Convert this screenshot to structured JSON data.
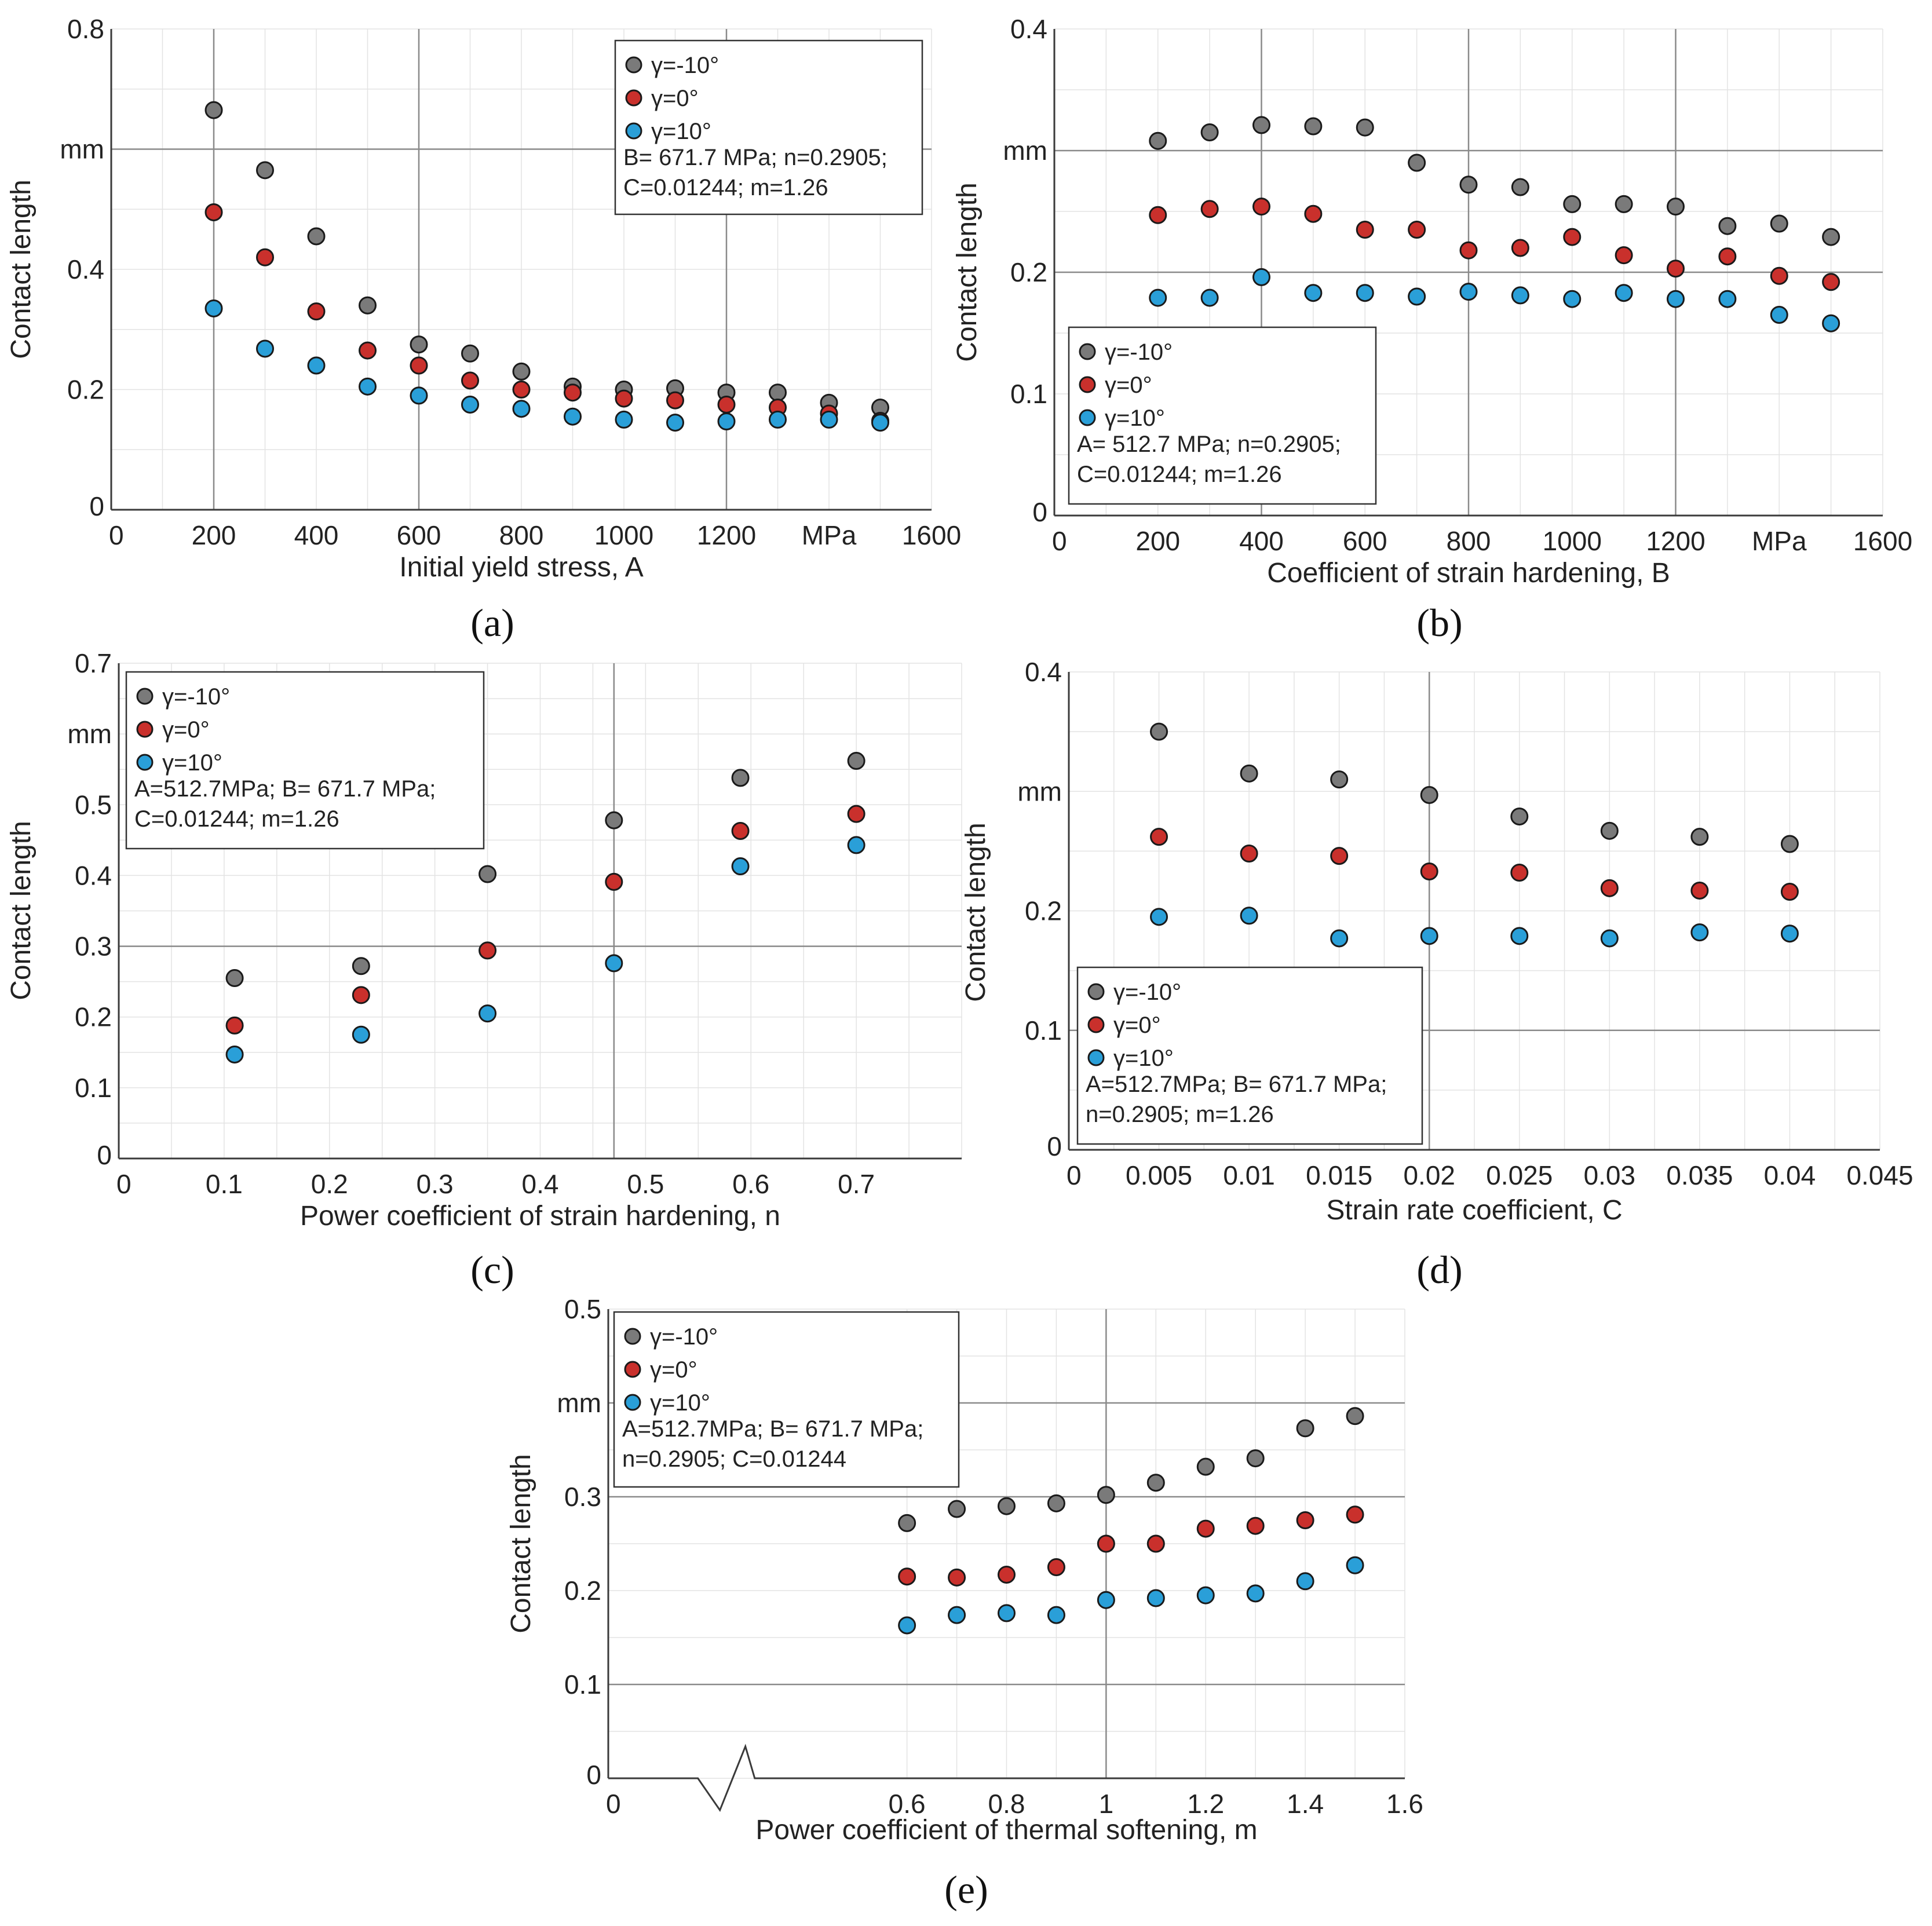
{
  "colors": {
    "gamma_minus10": "#7a7a7a",
    "gamma_0": "#c9302c",
    "gamma_10": "#2a9fd8"
  },
  "chart_data": [
    {
      "id": "a",
      "type": "scatter",
      "panel_label": "(a)",
      "xlabel": "Initial yield stress, A",
      "ylabel": "Contact length",
      "y_unit": "mm",
      "x_unit": "MPa",
      "xlim": [
        0,
        1600
      ],
      "ylim": [
        0,
        0.8
      ],
      "x_ticks": [
        "0",
        "200",
        "400",
        "600",
        "800",
        "1000",
        "1200",
        "MPa",
        "1600"
      ],
      "x_tick_values": [
        0,
        200,
        400,
        600,
        800,
        1000,
        1200,
        1400,
        1600
      ],
      "y_ticks": [
        "0",
        "0.2",
        "0.4",
        "mm",
        "0.8"
      ],
      "y_tick_values": [
        0,
        0.2,
        0.4,
        0.6,
        0.8
      ],
      "major_x": [
        200,
        600,
        1200
      ],
      "major_y": [
        0.6
      ],
      "legend_params": [
        "B= 671.7 MPa; n=0.2905;",
        "C=0.01244; m=1.26"
      ],
      "x": [
        200,
        300,
        400,
        500,
        600,
        700,
        800,
        900,
        1000,
        1100,
        1200,
        1300,
        1400,
        1500
      ],
      "series": [
        {
          "name": "γ=-10°",
          "values": [
            0.665,
            0.565,
            0.455,
            0.34,
            0.275,
            0.26,
            0.23,
            0.205,
            0.2,
            0.202,
            0.195,
            0.195,
            0.178,
            0.17
          ]
        },
        {
          "name": "γ=0°",
          "values": [
            0.495,
            0.42,
            0.33,
            0.265,
            0.24,
            0.215,
            0.2,
            0.195,
            0.185,
            0.182,
            0.175,
            0.17,
            0.16,
            0.148
          ]
        },
        {
          "name": "γ=10°",
          "values": [
            0.335,
            0.268,
            0.24,
            0.205,
            0.19,
            0.175,
            0.168,
            0.155,
            0.15,
            0.145,
            0.147,
            0.15,
            0.15,
            0.145
          ]
        }
      ]
    },
    {
      "id": "b",
      "type": "scatter",
      "panel_label": "(b)",
      "xlabel": "Coefficient of strain hardening, B",
      "ylabel": "Contact length",
      "y_unit": "mm",
      "x_unit": "MPa",
      "xlim": [
        0,
        1600
      ],
      "ylim": [
        0,
        0.4
      ],
      "x_ticks": [
        "0",
        "200",
        "400",
        "600",
        "800",
        "1000",
        "1200",
        "MPa",
        "1600"
      ],
      "x_tick_values": [
        0,
        200,
        400,
        600,
        800,
        1000,
        1200,
        1400,
        1600
      ],
      "y_ticks": [
        "0",
        "0.1",
        "0.2",
        "mm",
        "0.4"
      ],
      "y_tick_values": [
        0,
        0.1,
        0.2,
        0.3,
        0.4
      ],
      "major_x": [
        400,
        800,
        1200
      ],
      "major_y": [
        0.2,
        0.3
      ],
      "legend_params": [
        "A= 512.7 MPa; n=0.2905;",
        "C=0.01244; m=1.26"
      ],
      "x": [
        200,
        300,
        400,
        500,
        600,
        700,
        800,
        900,
        1000,
        1100,
        1200,
        1300,
        1400,
        1500
      ],
      "series": [
        {
          "name": "γ=-10°",
          "values": [
            0.308,
            0.315,
            0.321,
            0.32,
            0.319,
            0.29,
            0.272,
            0.27,
            0.256,
            0.256,
            0.254,
            0.238,
            0.24,
            0.229
          ]
        },
        {
          "name": "γ=0°",
          "values": [
            0.247,
            0.252,
            0.254,
            0.248,
            0.235,
            0.235,
            0.218,
            0.22,
            0.229,
            0.214,
            0.203,
            0.213,
            0.197,
            0.192
          ]
        },
        {
          "name": "γ=10°",
          "values": [
            0.179,
            0.179,
            0.196,
            0.183,
            0.183,
            0.18,
            0.184,
            0.181,
            0.178,
            0.183,
            0.178,
            0.178,
            0.165,
            0.158
          ]
        }
      ]
    },
    {
      "id": "c",
      "type": "scatter",
      "panel_label": "(c)",
      "xlabel": "Power coefficient of strain hardening, n",
      "ylabel": "Contact length",
      "y_unit": "mm",
      "xlim": [
        0,
        0.8
      ],
      "ylim": [
        0,
        0.7
      ],
      "x_ticks": [
        "0",
        "0.1",
        "0.2",
        "0.3",
        "0.4",
        "0.5",
        "0.6",
        "0.7"
      ],
      "x_tick_values": [
        0,
        0.1,
        0.2,
        0.3,
        0.4,
        0.5,
        0.6,
        0.7
      ],
      "y_ticks": [
        "0",
        "0.1",
        "0.2",
        "0.3",
        "0.4",
        "0.5",
        "mm",
        "0.7"
      ],
      "y_tick_values": [
        0,
        0.1,
        0.2,
        0.3,
        0.4,
        0.5,
        0.6,
        0.7
      ],
      "major_x": [
        0.47
      ],
      "major_y": [
        0.3
      ],
      "legend_params": [
        "A=512.7MPa; B= 671.7 MPa;",
        "C=0.01244; m=1.26"
      ],
      "x": [
        0.11,
        0.23,
        0.35,
        0.47,
        0.59,
        0.7
      ],
      "series": [
        {
          "name": "γ=-10°",
          "values": [
            0.255,
            0.272,
            0.402,
            0.478,
            0.538,
            0.562
          ]
        },
        {
          "name": "γ=0°",
          "values": [
            0.188,
            0.231,
            0.294,
            0.391,
            0.463,
            0.487
          ]
        },
        {
          "name": "γ=10°",
          "values": [
            0.147,
            0.175,
            0.205,
            0.276,
            0.413,
            0.443
          ]
        }
      ]
    },
    {
      "id": "d",
      "type": "scatter",
      "panel_label": "(d)",
      "xlabel": "Strain rate coefficient, C",
      "ylabel": "Contact length",
      "y_unit": "mm",
      "xlim": [
        0,
        0.045
      ],
      "ylim": [
        0,
        0.4
      ],
      "x_ticks": [
        "0",
        "0.005",
        "0.01",
        "0.015",
        "0.02",
        "0.025",
        "0.03",
        "0.035",
        "0.04",
        "0.045"
      ],
      "x_tick_values": [
        0,
        0.005,
        0.01,
        0.015,
        0.02,
        0.025,
        0.03,
        0.035,
        0.04,
        0.045
      ],
      "y_ticks": [
        "0",
        "0.1",
        "0.2",
        "mm",
        "0.4"
      ],
      "y_tick_values": [
        0,
        0.1,
        0.2,
        0.3,
        0.4
      ],
      "major_x": [
        0.02
      ],
      "major_y": [
        0.1
      ],
      "legend_params": [
        "A=512.7MPa; B= 671.7 MPa;",
        "n=0.2905; m=1.26"
      ],
      "x": [
        0.005,
        0.01,
        0.015,
        0.02,
        0.025,
        0.03,
        0.035,
        0.04
      ],
      "series": [
        {
          "name": "γ=-10°",
          "values": [
            0.35,
            0.315,
            0.31,
            0.297,
            0.279,
            0.267,
            0.262,
            0.256
          ]
        },
        {
          "name": "γ=0°",
          "values": [
            0.262,
            0.248,
            0.246,
            0.233,
            0.232,
            0.219,
            0.217,
            0.216
          ]
        },
        {
          "name": "γ=10°",
          "values": [
            0.195,
            0.196,
            0.177,
            0.179,
            0.179,
            0.177,
            0.182,
            0.181
          ]
        }
      ]
    },
    {
      "id": "e",
      "type": "scatter",
      "panel_label": "(e)",
      "xlabel": "Power coefficient of thermal softening, m",
      "ylabel": "Contact length",
      "y_unit": "mm",
      "xlim": [
        0,
        1.6
      ],
      "ylim": [
        0,
        0.5
      ],
      "x_ticks": [
        "0",
        "0.6",
        "0.8",
        "1",
        "1.2",
        "1.4",
        "1.6"
      ],
      "x_tick_values": [
        0,
        0.6,
        0.8,
        1,
        1.2,
        1.4,
        1.6
      ],
      "y_ticks": [
        "0",
        "0.1",
        "0.2",
        "0.3",
        "mm",
        "0.5"
      ],
      "y_tick_values": [
        0,
        0.1,
        0.2,
        0.3,
        0.4,
        0.5
      ],
      "major_x": [
        1
      ],
      "major_y": [
        0.1,
        0.3,
        0.4
      ],
      "axis_break": true,
      "legend_params": [
        "A=512.7MPa; B= 671.7 MPa;",
        "n=0.2905; C=0.01244"
      ],
      "x": [
        0.6,
        0.7,
        0.8,
        0.9,
        1.0,
        1.1,
        1.2,
        1.3,
        1.4,
        1.5
      ],
      "series": [
        {
          "name": "γ=-10°",
          "values": [
            0.272,
            0.287,
            0.29,
            0.293,
            0.302,
            0.315,
            0.332,
            0.341,
            0.373,
            0.386
          ]
        },
        {
          "name": "γ=0°",
          "values": [
            0.215,
            0.214,
            0.217,
            0.225,
            0.25,
            0.25,
            0.266,
            0.269,
            0.275,
            0.281
          ]
        },
        {
          "name": "γ=10°",
          "values": [
            0.163,
            0.174,
            0.176,
            0.174,
            0.19,
            0.192,
            0.195,
            0.197,
            0.21,
            0.227
          ]
        }
      ]
    }
  ]
}
